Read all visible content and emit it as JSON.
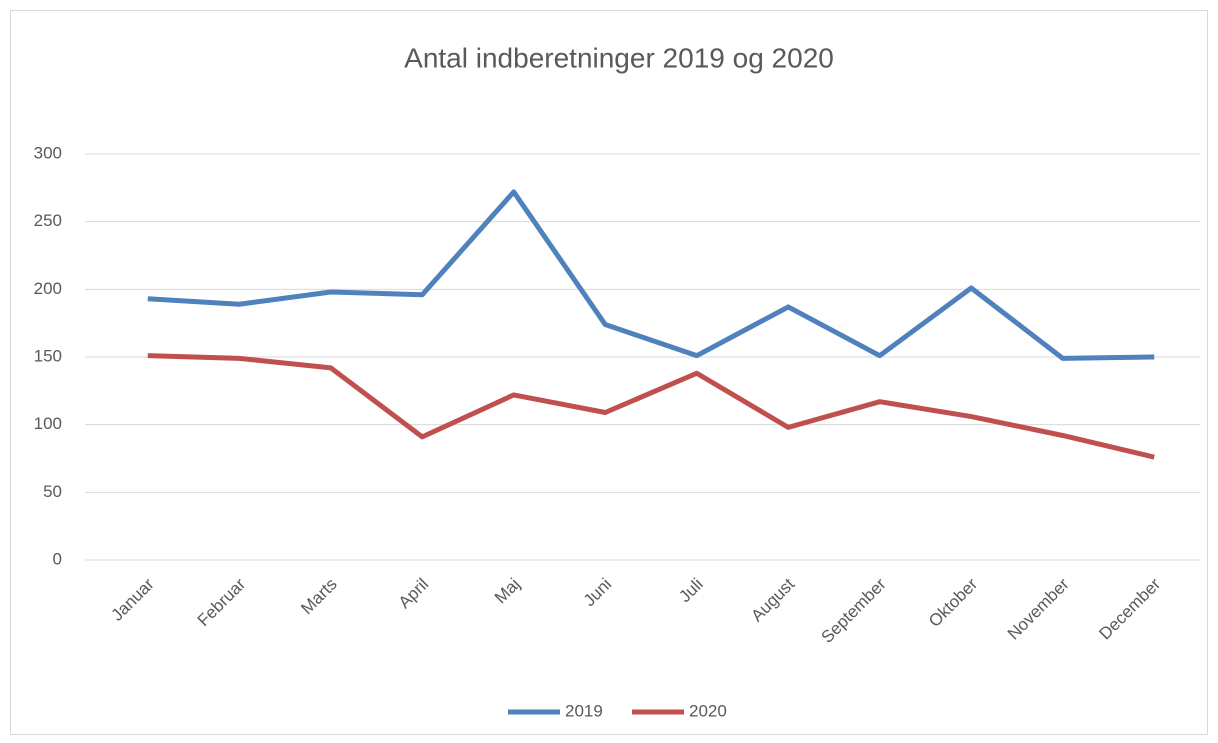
{
  "chart_data": {
    "type": "line",
    "title": "Antal indberetninger 2019 og 2020",
    "categories": [
      "Januar",
      "Februar",
      "Marts",
      "April",
      "Maj",
      "Juni",
      "Juli",
      "August",
      "September",
      "Oktober",
      "November",
      "December"
    ],
    "series": [
      {
        "name": "2019",
        "color": "#4f81bd",
        "values": [
          193,
          189,
          198,
          196,
          272,
          174,
          151,
          187,
          151,
          201,
          149,
          150
        ]
      },
      {
        "name": "2020",
        "color": "#c0504d",
        "values": [
          151,
          149,
          142,
          91,
          122,
          109,
          138,
          98,
          117,
          106,
          92,
          76
        ]
      }
    ],
    "ylim": [
      0,
      300
    ],
    "yticks": [
      0,
      50,
      100,
      150,
      200,
      250,
      300
    ],
    "grid": true,
    "legend": "bottom"
  }
}
